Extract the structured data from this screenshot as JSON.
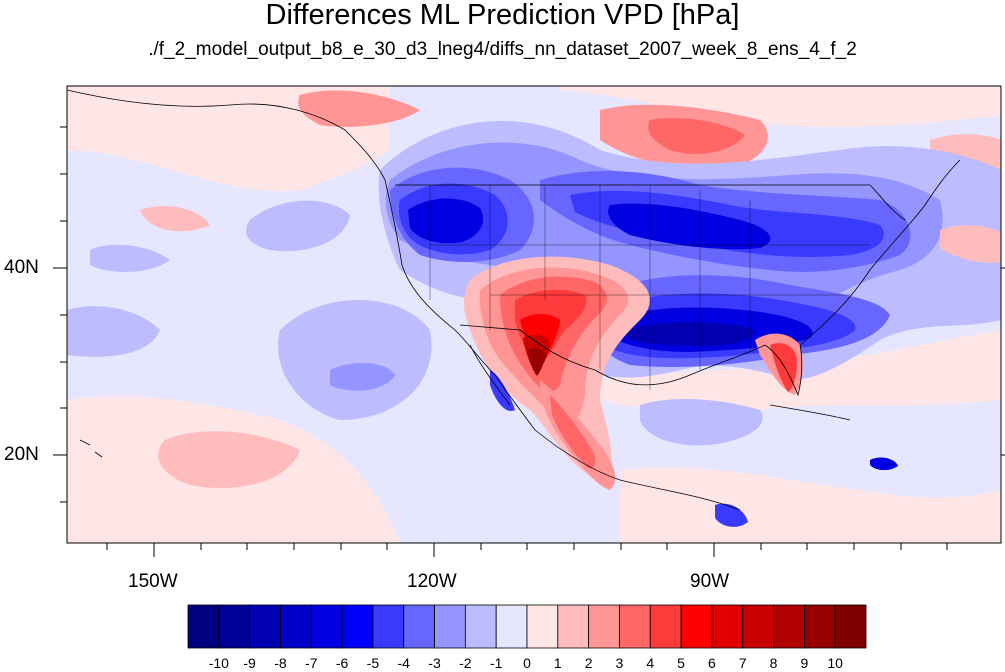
{
  "title": "Differences ML Prediction VPD [hPa]",
  "subtitle": "./f_2_model_output_b8_e_30_d3_lneg4/diffs_nn_dataset_2007_week_8_ens_4_f_2",
  "lat_labels": [
    "40N",
    "20N"
  ],
  "lon_labels": [
    "150W",
    "120W",
    "90W"
  ],
  "colorbar": {
    "labels": [
      "-10",
      "-9",
      "-8",
      "-7",
      "-6",
      "-5",
      "-4",
      "-3",
      "-2",
      "-1",
      "0",
      "1",
      "2",
      "3",
      "4",
      "5",
      "6",
      "7",
      "8",
      "9",
      "10"
    ],
    "colors": [
      "#000080",
      "#000098",
      "#0000b0",
      "#0000c8",
      "#0000e0",
      "#0000ff",
      "#3a3aff",
      "#6767ff",
      "#9595ff",
      "#bcbcff",
      "#e6e6ff",
      "#ffe6e6",
      "#ffbcbc",
      "#ff9595",
      "#ff6767",
      "#ff3a3a",
      "#ff0000",
      "#e00000",
      "#c80000",
      "#b00000",
      "#980000",
      "#800000"
    ]
  },
  "colors": {
    "ocean_base": "#e6e6ff",
    "light_blue": "#bcbcff",
    "mid_blue": "#9595ff",
    "blue": "#6767ff",
    "strong_blue": "#3a3aff",
    "deep_blue": "#0000e0",
    "darkest_blue": "#0000b0",
    "light_red": "#ffe6e6",
    "pink": "#ffbcbc",
    "salmon": "#ff9595",
    "red": "#ff6767",
    "strong_red": "#ff3a3a",
    "bright_red": "#ff0000",
    "dark_red": "#c80000",
    "darkest_red": "#980000"
  }
}
